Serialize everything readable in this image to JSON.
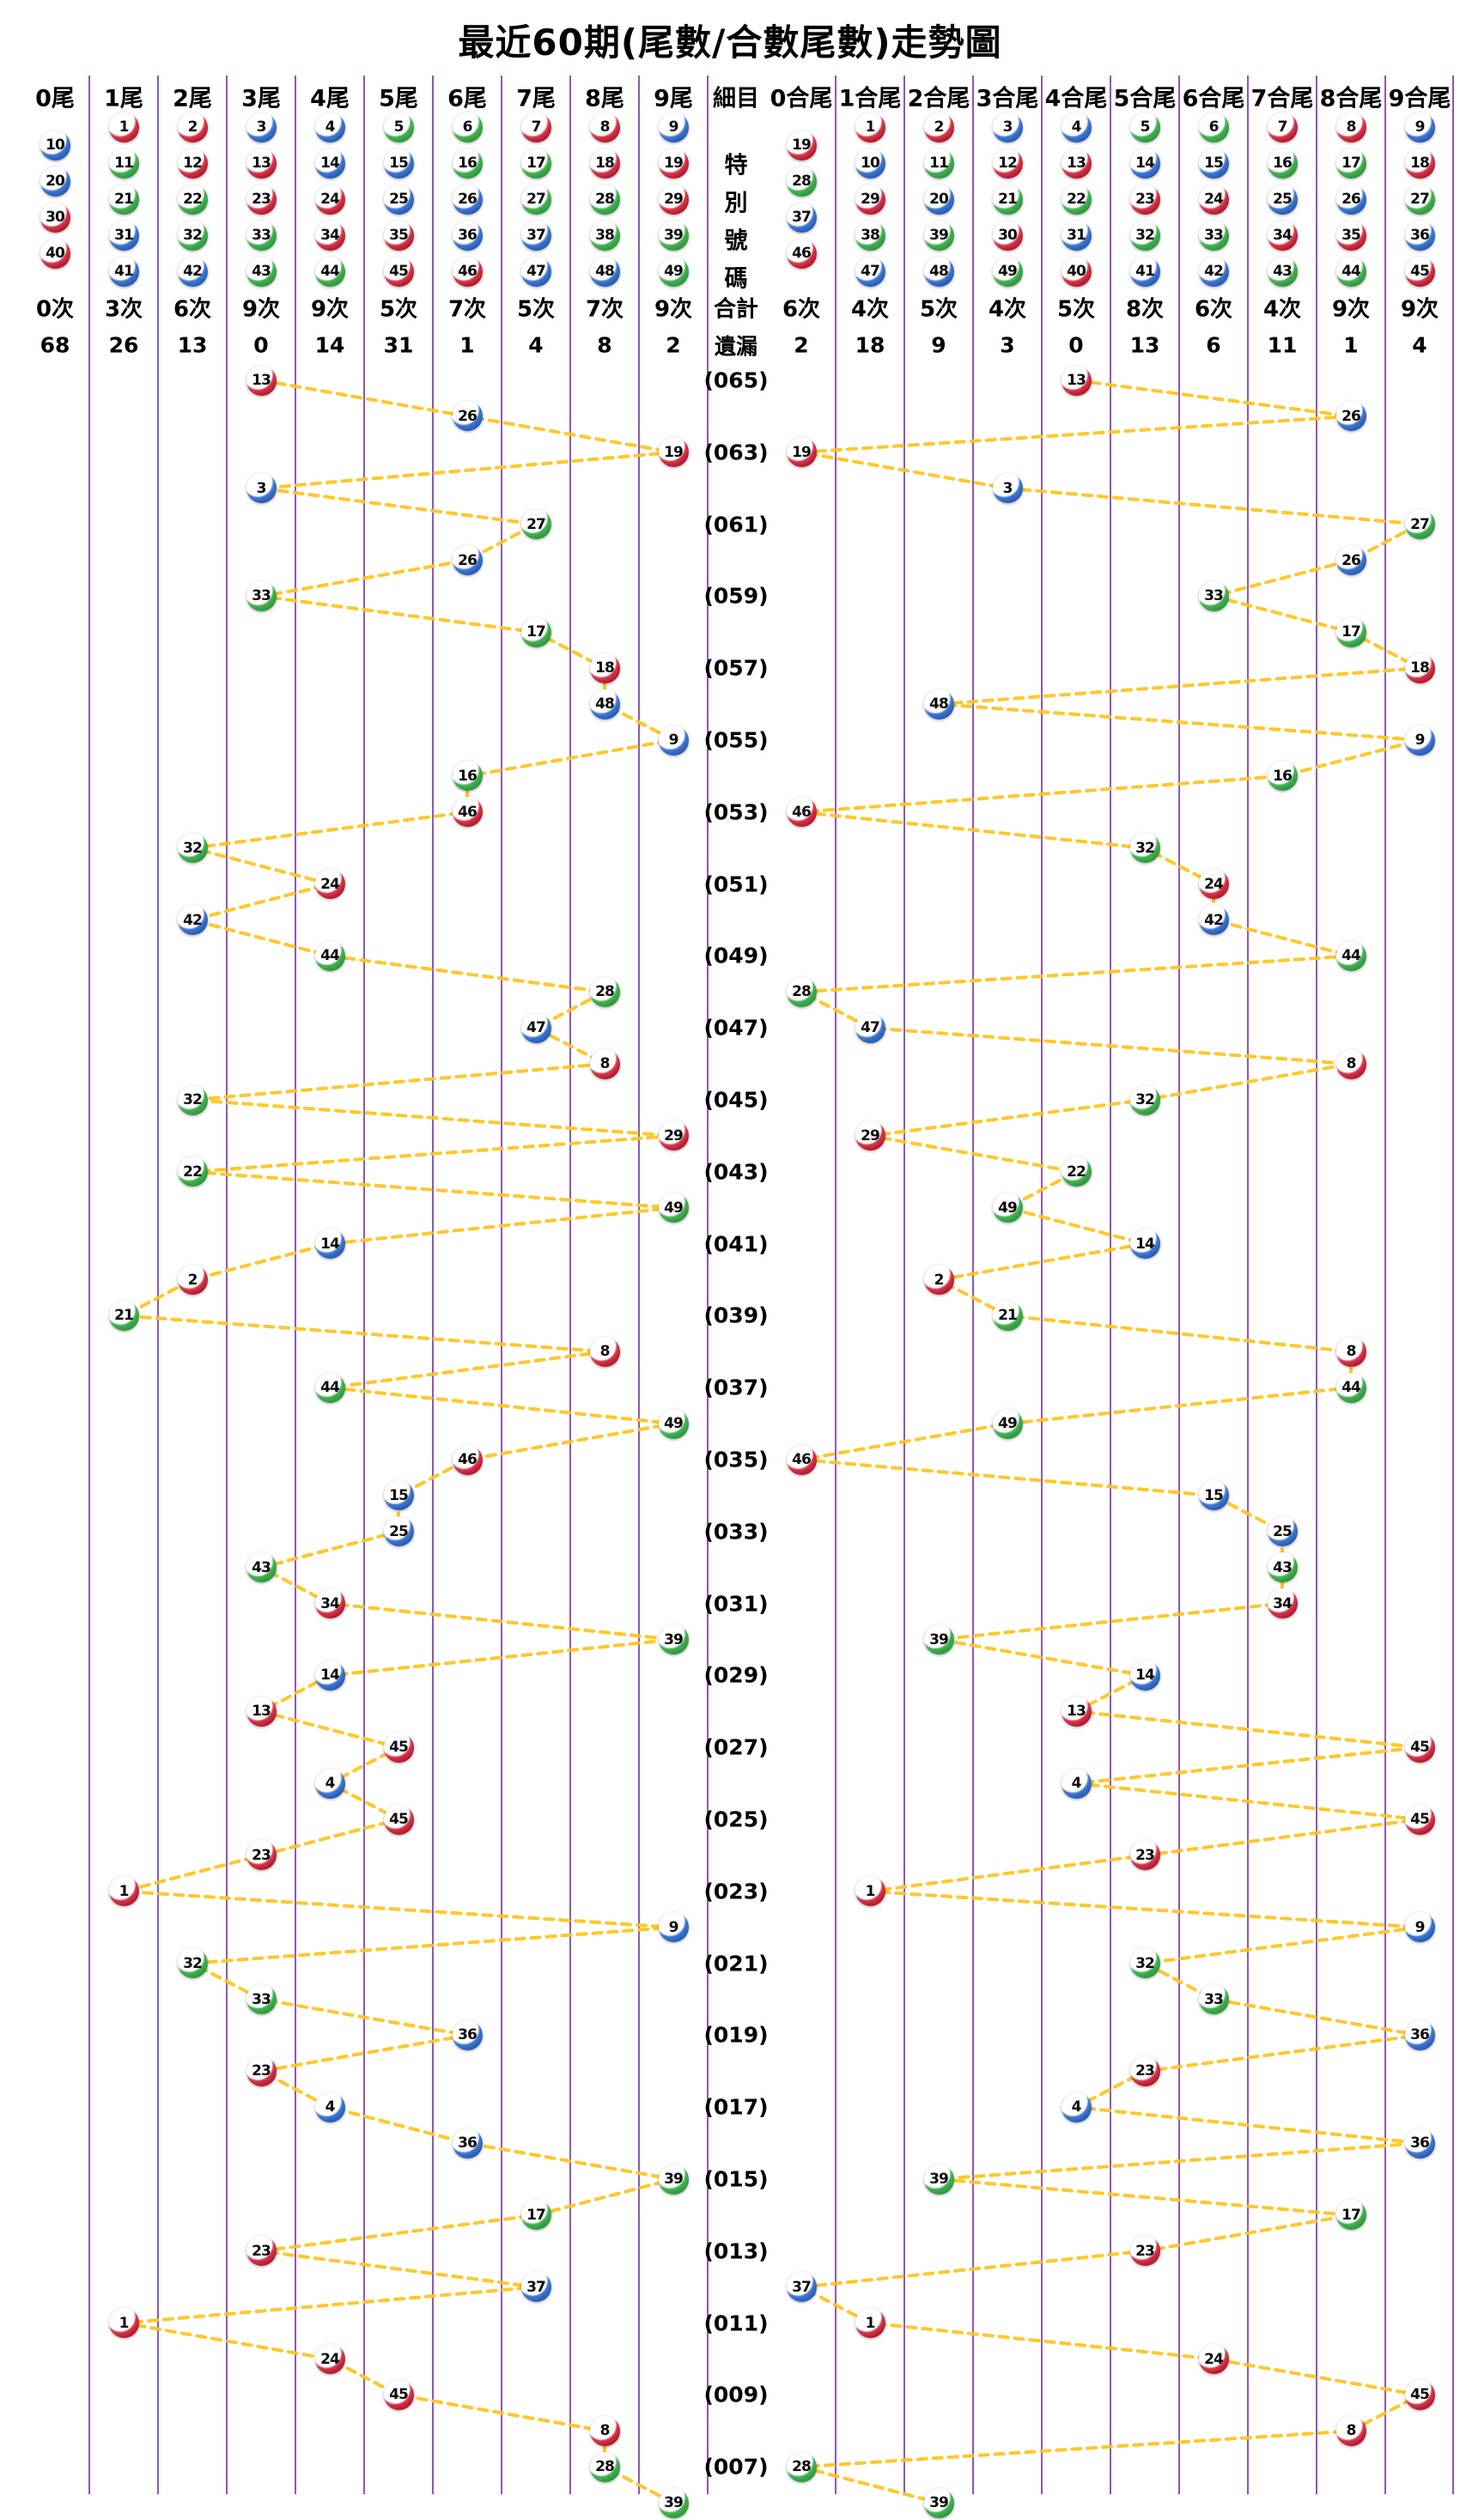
{
  "title": "最近60期(尾數/合數尾數)走勢圖",
  "palette": {
    "red": "#C41E2F",
    "blue": "#2B63B8",
    "green": "#36A344",
    "trend_line": "#FFC41E",
    "grid_line": "#7A3AA8",
    "text": "#000000"
  },
  "ball_colors": {
    "red": [
      1,
      2,
      7,
      8,
      12,
      13,
      18,
      19,
      23,
      24,
      29,
      30,
      34,
      35,
      40,
      45,
      46
    ],
    "blue": [
      3,
      4,
      9,
      10,
      14,
      15,
      20,
      25,
      26,
      31,
      36,
      37,
      41,
      42,
      47,
      48
    ],
    "green": [
      5,
      6,
      11,
      16,
      17,
      21,
      22,
      27,
      28,
      32,
      33,
      38,
      39,
      43,
      44,
      49
    ]
  },
  "middle": {
    "header": "細目",
    "special_label": "特別號碼",
    "total_label": "合計",
    "miss_label": "遺漏"
  },
  "suffix_section": {
    "columns": [
      {
        "label": "0尾",
        "balls": [
          10,
          20,
          30,
          40
        ],
        "count": "0次",
        "miss": "68"
      },
      {
        "label": "1尾",
        "balls": [
          1,
          11,
          21,
          31,
          41
        ],
        "count": "3次",
        "miss": "26"
      },
      {
        "label": "2尾",
        "balls": [
          2,
          12,
          22,
          32,
          42
        ],
        "count": "6次",
        "miss": "13"
      },
      {
        "label": "3尾",
        "balls": [
          3,
          13,
          23,
          33,
          43
        ],
        "count": "9次",
        "miss": "0"
      },
      {
        "label": "4尾",
        "balls": [
          4,
          14,
          24,
          34,
          44
        ],
        "count": "9次",
        "miss": "14"
      },
      {
        "label": "5尾",
        "balls": [
          5,
          15,
          25,
          35,
          45
        ],
        "count": "5次",
        "miss": "31"
      },
      {
        "label": "6尾",
        "balls": [
          6,
          16,
          26,
          36,
          46
        ],
        "count": "7次",
        "miss": "1"
      },
      {
        "label": "7尾",
        "balls": [
          7,
          17,
          27,
          37,
          47
        ],
        "count": "5次",
        "miss": "4"
      },
      {
        "label": "8尾",
        "balls": [
          8,
          18,
          28,
          38,
          48
        ],
        "count": "7次",
        "miss": "8"
      },
      {
        "label": "9尾",
        "balls": [
          9,
          19,
          29,
          39,
          49
        ],
        "count": "9次",
        "miss": "2"
      }
    ]
  },
  "sum_section": {
    "columns": [
      {
        "label": "0合尾",
        "balls": [
          19,
          28,
          37,
          46
        ],
        "count": "6次",
        "miss": "2"
      },
      {
        "label": "1合尾",
        "balls": [
          1,
          10,
          29,
          38,
          47
        ],
        "count": "4次",
        "miss": "18"
      },
      {
        "label": "2合尾",
        "balls": [
          2,
          11,
          20,
          39,
          48
        ],
        "count": "5次",
        "miss": "9"
      },
      {
        "label": "3合尾",
        "balls": [
          3,
          12,
          21,
          30,
          49
        ],
        "count": "4次",
        "miss": "3"
      },
      {
        "label": "4合尾",
        "balls": [
          4,
          13,
          22,
          31,
          40
        ],
        "count": "5次",
        "miss": "0"
      },
      {
        "label": "5合尾",
        "balls": [
          5,
          14,
          23,
          32,
          41
        ],
        "count": "8次",
        "miss": "13"
      },
      {
        "label": "6合尾",
        "balls": [
          6,
          15,
          24,
          33,
          42
        ],
        "count": "6次",
        "miss": "6"
      },
      {
        "label": "7合尾",
        "balls": [
          7,
          16,
          25,
          34,
          43
        ],
        "count": "4次",
        "miss": "11"
      },
      {
        "label": "8合尾",
        "balls": [
          8,
          17,
          26,
          35,
          44
        ],
        "count": "9次",
        "miss": "1"
      },
      {
        "label": "9合尾",
        "balls": [
          9,
          18,
          27,
          36,
          45
        ],
        "count": "9次",
        "miss": "4"
      }
    ]
  },
  "chart_data": {
    "type": "scatter",
    "title": "最近60期(尾數/合數尾數)走勢圖",
    "x_left_categories": [
      "0尾",
      "1尾",
      "2尾",
      "3尾",
      "4尾",
      "5尾",
      "6尾",
      "7尾",
      "8尾",
      "9尾"
    ],
    "x_right_categories": [
      "0合尾",
      "1合尾",
      "2合尾",
      "3合尾",
      "4合尾",
      "5合尾",
      "6合尾",
      "7合尾",
      "8合尾",
      "9合尾"
    ],
    "y_axis": "期號 (065 最新 → 006 最舊)",
    "legend_position": "none",
    "grid": "vertical-only",
    "rows": [
      {
        "period": 65,
        "label": "(065)",
        "number": 13,
        "tail": 3,
        "sum_tail": 4,
        "color": "red"
      },
      {
        "period": 64,
        "label": "",
        "number": 26,
        "tail": 6,
        "sum_tail": 8,
        "color": "blue"
      },
      {
        "period": 63,
        "label": "(063)",
        "number": 19,
        "tail": 9,
        "sum_tail": 0,
        "color": "red"
      },
      {
        "period": 62,
        "label": "",
        "number": 3,
        "tail": 3,
        "sum_tail": 3,
        "color": "blue"
      },
      {
        "period": 61,
        "label": "(061)",
        "number": 27,
        "tail": 7,
        "sum_tail": 9,
        "color": "green"
      },
      {
        "period": 60,
        "label": "",
        "number": 26,
        "tail": 6,
        "sum_tail": 8,
        "color": "blue"
      },
      {
        "period": 59,
        "label": "(059)",
        "number": 33,
        "tail": 3,
        "sum_tail": 6,
        "color": "green"
      },
      {
        "period": 58,
        "label": "",
        "number": 17,
        "tail": 7,
        "sum_tail": 8,
        "color": "green"
      },
      {
        "period": 57,
        "label": "(057)",
        "number": 18,
        "tail": 8,
        "sum_tail": 9,
        "color": "red"
      },
      {
        "period": 56,
        "label": "",
        "number": 48,
        "tail": 8,
        "sum_tail": 2,
        "color": "blue"
      },
      {
        "period": 55,
        "label": "(055)",
        "number": 9,
        "tail": 9,
        "sum_tail": 9,
        "color": "blue"
      },
      {
        "period": 54,
        "label": "",
        "number": 16,
        "tail": 6,
        "sum_tail": 7,
        "color": "green"
      },
      {
        "period": 53,
        "label": "(053)",
        "number": 46,
        "tail": 6,
        "sum_tail": 0,
        "color": "red"
      },
      {
        "period": 52,
        "label": "",
        "number": 32,
        "tail": 2,
        "sum_tail": 5,
        "color": "green"
      },
      {
        "period": 51,
        "label": "(051)",
        "number": 24,
        "tail": 4,
        "sum_tail": 6,
        "color": "red"
      },
      {
        "period": 50,
        "label": "",
        "number": 42,
        "tail": 2,
        "sum_tail": 6,
        "color": "blue"
      },
      {
        "period": 49,
        "label": "(049)",
        "number": 44,
        "tail": 4,
        "sum_tail": 8,
        "color": "green"
      },
      {
        "period": 48,
        "label": "",
        "number": 28,
        "tail": 8,
        "sum_tail": 0,
        "color": "green"
      },
      {
        "period": 47,
        "label": "(047)",
        "number": 47,
        "tail": 7,
        "sum_tail": 1,
        "color": "blue"
      },
      {
        "period": 46,
        "label": "",
        "number": 8,
        "tail": 8,
        "sum_tail": 8,
        "color": "red"
      },
      {
        "period": 45,
        "label": "(045)",
        "number": 32,
        "tail": 2,
        "sum_tail": 5,
        "color": "green"
      },
      {
        "period": 44,
        "label": "",
        "number": 29,
        "tail": 9,
        "sum_tail": 1,
        "color": "red"
      },
      {
        "period": 43,
        "label": "(043)",
        "number": 22,
        "tail": 2,
        "sum_tail": 4,
        "color": "green"
      },
      {
        "period": 42,
        "label": "",
        "number": 49,
        "tail": 9,
        "sum_tail": 3,
        "color": "green"
      },
      {
        "period": 41,
        "label": "(041)",
        "number": 14,
        "tail": 4,
        "sum_tail": 5,
        "color": "blue"
      },
      {
        "period": 40,
        "label": "",
        "number": 2,
        "tail": 2,
        "sum_tail": 2,
        "color": "red"
      },
      {
        "period": 39,
        "label": "(039)",
        "number": 21,
        "tail": 1,
        "sum_tail": 3,
        "color": "green"
      },
      {
        "period": 38,
        "label": "",
        "number": 8,
        "tail": 8,
        "sum_tail": 8,
        "color": "red"
      },
      {
        "period": 37,
        "label": "(037)",
        "number": 44,
        "tail": 4,
        "sum_tail": 8,
        "color": "green"
      },
      {
        "period": 36,
        "label": "",
        "number": 49,
        "tail": 9,
        "sum_tail": 3,
        "color": "green"
      },
      {
        "period": 35,
        "label": "(035)",
        "number": 46,
        "tail": 6,
        "sum_tail": 0,
        "color": "red"
      },
      {
        "period": 34,
        "label": "",
        "number": 15,
        "tail": 5,
        "sum_tail": 6,
        "color": "blue"
      },
      {
        "period": 33,
        "label": "(033)",
        "number": 25,
        "tail": 5,
        "sum_tail": 7,
        "color": "blue"
      },
      {
        "period": 32,
        "label": "",
        "number": 43,
        "tail": 3,
        "sum_tail": 7,
        "color": "green"
      },
      {
        "period": 31,
        "label": "(031)",
        "number": 34,
        "tail": 4,
        "sum_tail": 7,
        "color": "red"
      },
      {
        "period": 30,
        "label": "",
        "number": 39,
        "tail": 9,
        "sum_tail": 2,
        "color": "green"
      },
      {
        "period": 29,
        "label": "(029)",
        "number": 14,
        "tail": 4,
        "sum_tail": 5,
        "color": "blue"
      },
      {
        "period": 28,
        "label": "",
        "number": 13,
        "tail": 3,
        "sum_tail": 4,
        "color": "red"
      },
      {
        "period": 27,
        "label": "(027)",
        "number": 45,
        "tail": 5,
        "sum_tail": 9,
        "color": "red"
      },
      {
        "period": 26,
        "label": "",
        "number": 4,
        "tail": 4,
        "sum_tail": 4,
        "color": "blue"
      },
      {
        "period": 25,
        "label": "(025)",
        "number": 45,
        "tail": 5,
        "sum_tail": 9,
        "color": "red"
      },
      {
        "period": 24,
        "label": "",
        "number": 23,
        "tail": 3,
        "sum_tail": 5,
        "color": "red"
      },
      {
        "period": 23,
        "label": "(023)",
        "number": 1,
        "tail": 1,
        "sum_tail": 1,
        "color": "red"
      },
      {
        "period": 22,
        "label": "",
        "number": 9,
        "tail": 9,
        "sum_tail": 9,
        "color": "blue"
      },
      {
        "period": 21,
        "label": "(021)",
        "number": 32,
        "tail": 2,
        "sum_tail": 5,
        "color": "green"
      },
      {
        "period": 20,
        "label": "",
        "number": 33,
        "tail": 3,
        "sum_tail": 6,
        "color": "green"
      },
      {
        "period": 19,
        "label": "(019)",
        "number": 36,
        "tail": 6,
        "sum_tail": 9,
        "color": "blue"
      },
      {
        "period": 18,
        "label": "",
        "number": 23,
        "tail": 3,
        "sum_tail": 5,
        "color": "red"
      },
      {
        "period": 17,
        "label": "(017)",
        "number": 4,
        "tail": 4,
        "sum_tail": 4,
        "color": "blue"
      },
      {
        "period": 16,
        "label": "",
        "number": 36,
        "tail": 6,
        "sum_tail": 9,
        "color": "blue"
      },
      {
        "period": 15,
        "label": "(015)",
        "number": 39,
        "tail": 9,
        "sum_tail": 2,
        "color": "green"
      },
      {
        "period": 14,
        "label": "",
        "number": 17,
        "tail": 7,
        "sum_tail": 8,
        "color": "green"
      },
      {
        "period": 13,
        "label": "(013)",
        "number": 23,
        "tail": 3,
        "sum_tail": 5,
        "color": "red"
      },
      {
        "period": 12,
        "label": "",
        "number": 37,
        "tail": 7,
        "sum_tail": 0,
        "color": "blue"
      },
      {
        "period": 11,
        "label": "(011)",
        "number": 1,
        "tail": 1,
        "sum_tail": 1,
        "color": "red"
      },
      {
        "period": 10,
        "label": "",
        "number": 24,
        "tail": 4,
        "sum_tail": 6,
        "color": "red"
      },
      {
        "period": 9,
        "label": "(009)",
        "number": 45,
        "tail": 5,
        "sum_tail": 9,
        "color": "red"
      },
      {
        "period": 8,
        "label": "",
        "number": 8,
        "tail": 8,
        "sum_tail": 8,
        "color": "red"
      },
      {
        "period": 7,
        "label": "(007)",
        "number": 28,
        "tail": 8,
        "sum_tail": 0,
        "color": "green"
      },
      {
        "period": 6,
        "label": "",
        "number": 39,
        "tail": 9,
        "sum_tail": 2,
        "color": "green"
      }
    ]
  }
}
